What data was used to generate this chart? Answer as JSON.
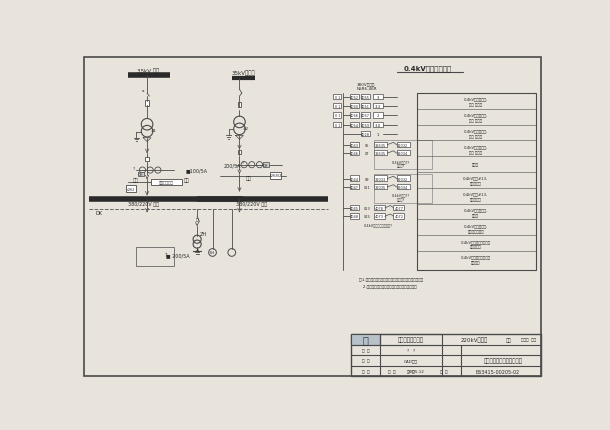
{
  "bg_color": "#e8e4dc",
  "line_color": "#4a4a4a",
  "dark_color": "#2a2a2a",
  "watermark_color": "#c8c0b0",
  "title_35kv_left": "35kV 甲线",
  "title_35kv_right": "35kV施工变",
  "label_380_left": "380/220V 甲母",
  "label_380_right": "380/220V 乙母",
  "label_ct_left": "■100/5A",
  "label_ct_right": "200/5A",
  "label_qf1": "#1",
  "label_qf2": "#2",
  "label_269": "ɩ26Ι",
  "label_260": "ɩ26Θ2",
  "label_dk": "DK",
  "label_zh": "ZH",
  "label_bzy": "备用电源自投",
  "label_fenhe": "风合",
  "label_200_5a": "■ 200/5A",
  "label_lh": "LH",
  "right_title": "0.4kV自投柜示意图",
  "label_nsr": "380V馈线柜",
  "label_nsr2": "NSR6-46R",
  "note1": "注:1.常规，直路方式自投动作已完成自投装置内部完成。",
  "note2": "   2.自投装置合分各路开关由自投装置自行完成。",
  "tb_company": "湖南省电力设计院",
  "tb_project": "220kV变电所",
  "tb_drawing": "所用变压器及备自投示意图",
  "tb_date": "2005.12",
  "tb_no": "E63415-00205-02",
  "rows_main": [
    {
      "y_left_label": "II 1",
      "left1": "4062",
      "left2": "4065",
      "right_label": "3"
    },
    {
      "y_left_label": "II 1",
      "left1": "4060",
      "left2": "4061",
      "right_label": "3.3"
    },
    {
      "y_left_label": "II 1",
      "left1": "4066",
      "left2": "4067",
      "right_label": "2"
    },
    {
      "y_left_label": "II 1",
      "left1": "4064",
      "left2": "4069",
      "right_label": "3.0"
    }
  ],
  "row_1": {
    "left1": "4028",
    "right_label": "1"
  },
  "rows_section1": [
    {
      "id_left": "4043",
      "num": "05",
      "b1": "31635",
      "b2": "31032"
    },
    {
      "id_left": "4046",
      "num": "07",
      "b1": "31635",
      "b2": "31034"
    }
  ],
  "rows_section2": [
    {
      "id_left": "4044",
      "num": "09",
      "b1": "32033",
      "b2": "32032"
    },
    {
      "id_left": "4047",
      "num": "011",
      "b1": "32035",
      "b2": "32034"
    }
  ],
  "rows_section3": [
    {
      "id_left": "4045",
      "num": "013",
      "b1": "4078",
      "b2": "4077"
    },
    {
      "id_left": "4048",
      "num": "015",
      "b1": "4073",
      "b2": "4072"
    }
  ],
  "legend_items": [
    "0.4kV备用变压器,\n合闸 馈线柜",
    "0.4kV备用变压器,\n回路 馈线柜",
    "0.4kV备用变压器,\n合闸 馈线柜",
    "0.4kV备用变压器,\n合闸 馈线柜",
    "公共柜",
    "0.4kV备用#13,\n合闸位置柜",
    "0.4kV备用#13,\n合自位置柜",
    "0.4kV备用变压器,\n馈线柜",
    "0.4kV备用变压器,\n合自位置馈线柜",
    "0.4kV所用分段自投装置\n馈线分位置",
    "0.4kV所用分段自投装置\n合闸位置"
  ]
}
